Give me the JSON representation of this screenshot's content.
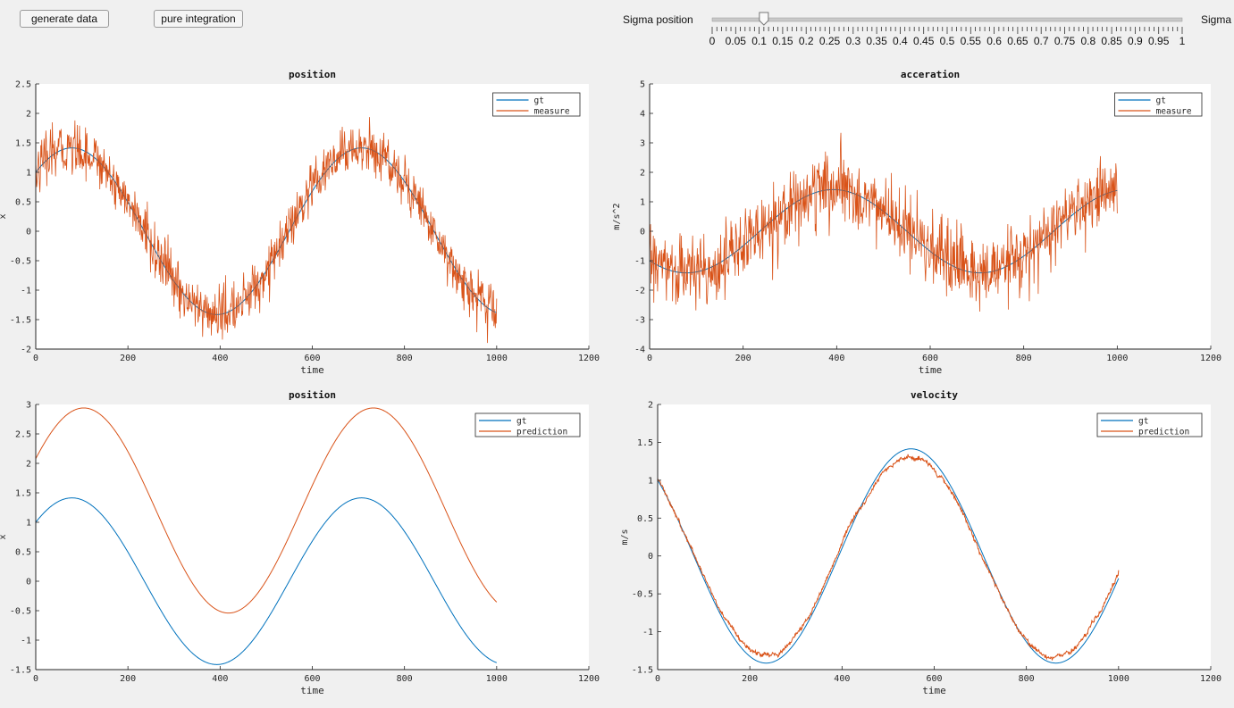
{
  "toolbar": {
    "generate_label": "generate data",
    "pure_label": "pure integration"
  },
  "slider": {
    "label": "Sigma position",
    "label2": "Sigma",
    "value": 0.11,
    "min": 0,
    "max": 1,
    "tick_labels": [
      "0",
      "0.05",
      "0.1",
      "0.15",
      "0.2",
      "0.25",
      "0.3",
      "0.35",
      "0.4",
      "0.45",
      "0.5",
      "0.55",
      "0.6",
      "0.65",
      "0.7",
      "0.75",
      "0.8",
      "0.85",
      "0.9",
      "0.95",
      "1"
    ]
  },
  "colors": {
    "gt": "#0072bd",
    "other": "#d95319",
    "axis_bg": "#ffffff",
    "fig_bg": "#f0f0f0"
  },
  "chart_data": [
    {
      "type": "line",
      "title": "position",
      "xlabel": "time",
      "ylabel": "x",
      "xlim": [
        0,
        1200
      ],
      "ylim": [
        -2,
        2.5
      ],
      "xticks": [
        "0",
        "200",
        "400",
        "600",
        "800",
        "1000",
        "1200"
      ],
      "yticks": [
        "-2",
        "-1.5",
        "-1",
        "-0.5",
        "0",
        "0.5",
        "1",
        "1.5",
        "2",
        "2.5"
      ],
      "legend": [
        "gt",
        "measure"
      ],
      "legend_position": "top-right",
      "series": [
        {
          "name": "gt",
          "kind": "sin",
          "amp": 1.414,
          "freq": 0.01,
          "phase": 0.785,
          "offset": 0,
          "n": 1000,
          "noise": 0,
          "walk": 0
        },
        {
          "name": "measure",
          "kind": "sin",
          "amp": 1.414,
          "freq": 0.01,
          "phase": 0.785,
          "offset": 0,
          "n": 1000,
          "noise": 0.22,
          "walk": 0
        }
      ]
    },
    {
      "type": "line",
      "title": "acceration",
      "xlabel": "time",
      "ylabel": "m/s^2",
      "xlim": [
        0,
        1200
      ],
      "ylim": [
        -4,
        5
      ],
      "xticks": [
        "0",
        "200",
        "400",
        "600",
        "800",
        "1000",
        "1200"
      ],
      "yticks": [
        "-4",
        "-3",
        "-2",
        "-1",
        "0",
        "1",
        "2",
        "3",
        "4",
        "5"
      ],
      "legend": [
        "gt",
        "measure"
      ],
      "legend_position": "top-right",
      "series": [
        {
          "name": "gt",
          "kind": "sin",
          "amp": -1.414,
          "freq": 0.01,
          "phase": 0.785,
          "offset": 0,
          "n": 1000,
          "noise": 0,
          "walk": 0
        },
        {
          "name": "measure",
          "kind": "sin",
          "amp": -1.414,
          "freq": 0.01,
          "phase": 0.785,
          "offset": 0,
          "n": 1000,
          "noise": 0.6,
          "walk": 0
        }
      ]
    },
    {
      "type": "line",
      "title": "position",
      "xlabel": "time",
      "ylabel": "x",
      "xlim": [
        0,
        1200
      ],
      "ylim": [
        -1.5,
        3
      ],
      "xticks": [
        "0",
        "200",
        "400",
        "600",
        "800",
        "1000",
        "1200"
      ],
      "yticks": [
        "-1.5",
        "-1",
        "-0.5",
        "0",
        "0.5",
        "1",
        "1.5",
        "2",
        "2.5",
        "3"
      ],
      "legend": [
        "gt",
        "prediction"
      ],
      "legend_position": "top-right",
      "series": [
        {
          "name": "gt",
          "kind": "sin",
          "amp": 1.414,
          "freq": 0.01,
          "phase": 0.785,
          "offset": 0,
          "n": 1000,
          "noise": 0,
          "walk": 0
        },
        {
          "name": "prediction",
          "kind": "sin",
          "amp": 1.74,
          "freq": 0.01,
          "phase": 0.53,
          "offset": 1.2,
          "n": 1000,
          "noise": 0,
          "walk": 0,
          "tweak": -0.29
        }
      ]
    },
    {
      "type": "line",
      "title": "velocity",
      "xlabel": "time",
      "ylabel": "m/s",
      "xlim": [
        0,
        1200
      ],
      "ylim": [
        -1.5,
        2
      ],
      "xticks": [
        "0",
        "200",
        "400",
        "600",
        "800",
        "1000",
        "1200"
      ],
      "yticks": [
        "-1.5",
        "-1",
        "-0.5",
        "0",
        "0.5",
        "1",
        "1.5",
        "2"
      ],
      "legend": [
        "gt",
        "prediction"
      ],
      "legend_position": "top-right",
      "series": [
        {
          "name": "gt",
          "kind": "cos",
          "amp": 1.414,
          "freq": 0.01,
          "phase": 0.785,
          "offset": 0,
          "n": 1000,
          "noise": 0,
          "walk": 0
        },
        {
          "name": "prediction",
          "kind": "cos",
          "amp": 1.414,
          "freq": 0.01,
          "phase": 0.785,
          "offset": 0,
          "n": 1000,
          "noise": 0.012,
          "walk": 0.9
        }
      ]
    }
  ]
}
